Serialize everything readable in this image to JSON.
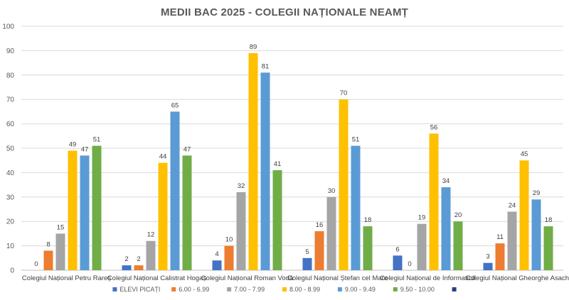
{
  "chart_data": {
    "type": "bar",
    "title": "MEDII BAC 2025 - COLEGII NAȚIONALE NEAMȚ",
    "xlabel": "",
    "ylabel": "",
    "ylim": [
      0,
      100
    ],
    "yticks": [
      0,
      10,
      20,
      30,
      40,
      50,
      60,
      70,
      80,
      90,
      100
    ],
    "grid": true,
    "legend_position": "bottom",
    "categories": [
      "Colegiul Național Petru Rareș",
      "Colegiul Național Calistrat Hogaș",
      "Colegiul Național Roman Vodă",
      "Colegiul Național Ștefan cel Mare",
      "Colegiul Național de Informatică",
      "Colegiul Național Gheorghe Asachi"
    ],
    "series": [
      {
        "name": "ELEVI PICAȚI",
        "color": "#4472c4",
        "values": [
          0,
          2,
          4,
          5,
          6,
          3
        ]
      },
      {
        "name": "6.00 - 6.99",
        "color": "#ed7d31",
        "values": [
          8,
          2,
          10,
          16,
          0,
          11
        ]
      },
      {
        "name": "7.00 - 7.99",
        "color": "#a5a5a5",
        "values": [
          15,
          12,
          32,
          30,
          19,
          24
        ]
      },
      {
        "name": "8.00 - 8.99",
        "color": "#ffc000",
        "values": [
          49,
          44,
          89,
          70,
          56,
          45
        ]
      },
      {
        "name": "9.00 - 9.49",
        "color": "#5b9bd5",
        "values": [
          47,
          65,
          81,
          51,
          34,
          29
        ]
      },
      {
        "name": "9.50 - 10.00",
        "color": "#70ad47",
        "values": [
          51,
          47,
          41,
          18,
          20,
          18
        ]
      }
    ],
    "extra_legend_entries": [
      {
        "name": "",
        "color": "#264478"
      }
    ]
  }
}
